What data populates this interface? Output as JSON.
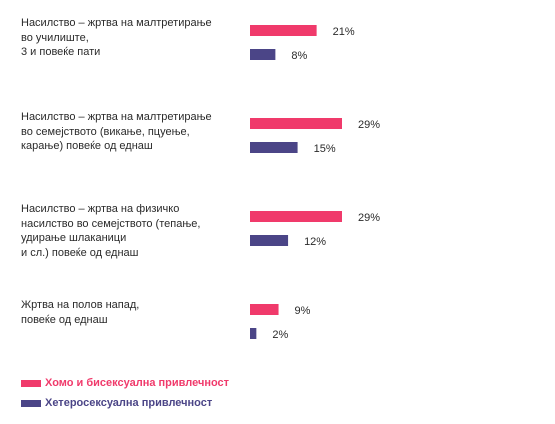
{
  "chart_data": {
    "type": "bar",
    "orientation": "horizontal",
    "categories": [
      "Насилство – жртва на малтретирање\nво училиште,\n3 и повеќе пати",
      "Насилство – жртва на малтретирање\nво семејството (викање, пцуење,\nкарање) повеќе од еднаш",
      "Насилство – жртва на физичко\nнасилство во семејството (тепање,\nудирање шлаканици\nи сл.) повеќе од еднаш",
      "Жртва на полов напад,\nповеќе од еднаш"
    ],
    "series": [
      {
        "name": "Хомо и бисексуална привлечност",
        "color": "#f03a6b",
        "values": [
          21,
          29,
          29,
          9
        ]
      },
      {
        "name": "Хетеросексуална привлечност",
        "color": "#4b4587",
        "values": [
          8,
          15,
          12,
          2
        ]
      }
    ],
    "value_suffix": "%",
    "xlim": [
      0,
      29
    ],
    "grid": false,
    "legend": "bottom-left"
  }
}
